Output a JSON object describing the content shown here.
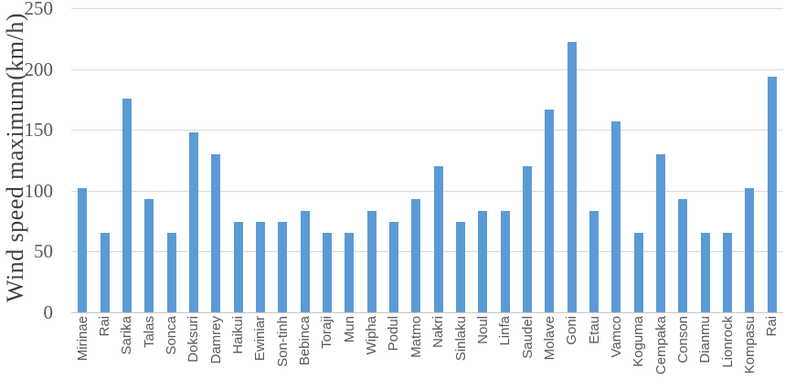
{
  "chart_data": {
    "type": "bar",
    "ylabel": "Wind speed maximum(km/h)",
    "ylim": [
      0,
      250
    ],
    "yticks": [
      0,
      50,
      100,
      150,
      200,
      250
    ],
    "grid": true,
    "legend": false,
    "categories": [
      "Mirinae",
      "Rai",
      "Sarika",
      "Talas",
      "Sonca",
      "Doksuri",
      "Damrey",
      "Haikui",
      "Ewiniar",
      "Son-tinh",
      "Bebinca",
      "Toraji",
      "Mun",
      "Wipha",
      "Podul",
      "Matmo",
      "Nakri",
      "Sinlaku",
      "Noul",
      "Linfa",
      "Saudel",
      "Molave",
      "Goni",
      "Etau",
      "Vamco",
      "Koguma",
      "Cempaka",
      "Conson",
      "Dianmu",
      "Lionrock",
      "Kompasu",
      "Rai"
    ],
    "values": [
      102,
      65,
      176,
      93,
      65,
      148,
      130,
      74,
      74,
      74,
      83,
      65,
      65,
      83,
      74,
      93,
      120,
      74,
      83,
      83,
      120,
      167,
      222,
      83,
      157,
      65,
      130,
      93,
      65,
      65,
      102,
      194
    ],
    "colors": {
      "bar": "#5b9bd5",
      "gridline": "#d9d9d9",
      "axis_line": "#c6c6c6",
      "tick_text": "#595959",
      "axis_title_text": "#404040"
    }
  }
}
